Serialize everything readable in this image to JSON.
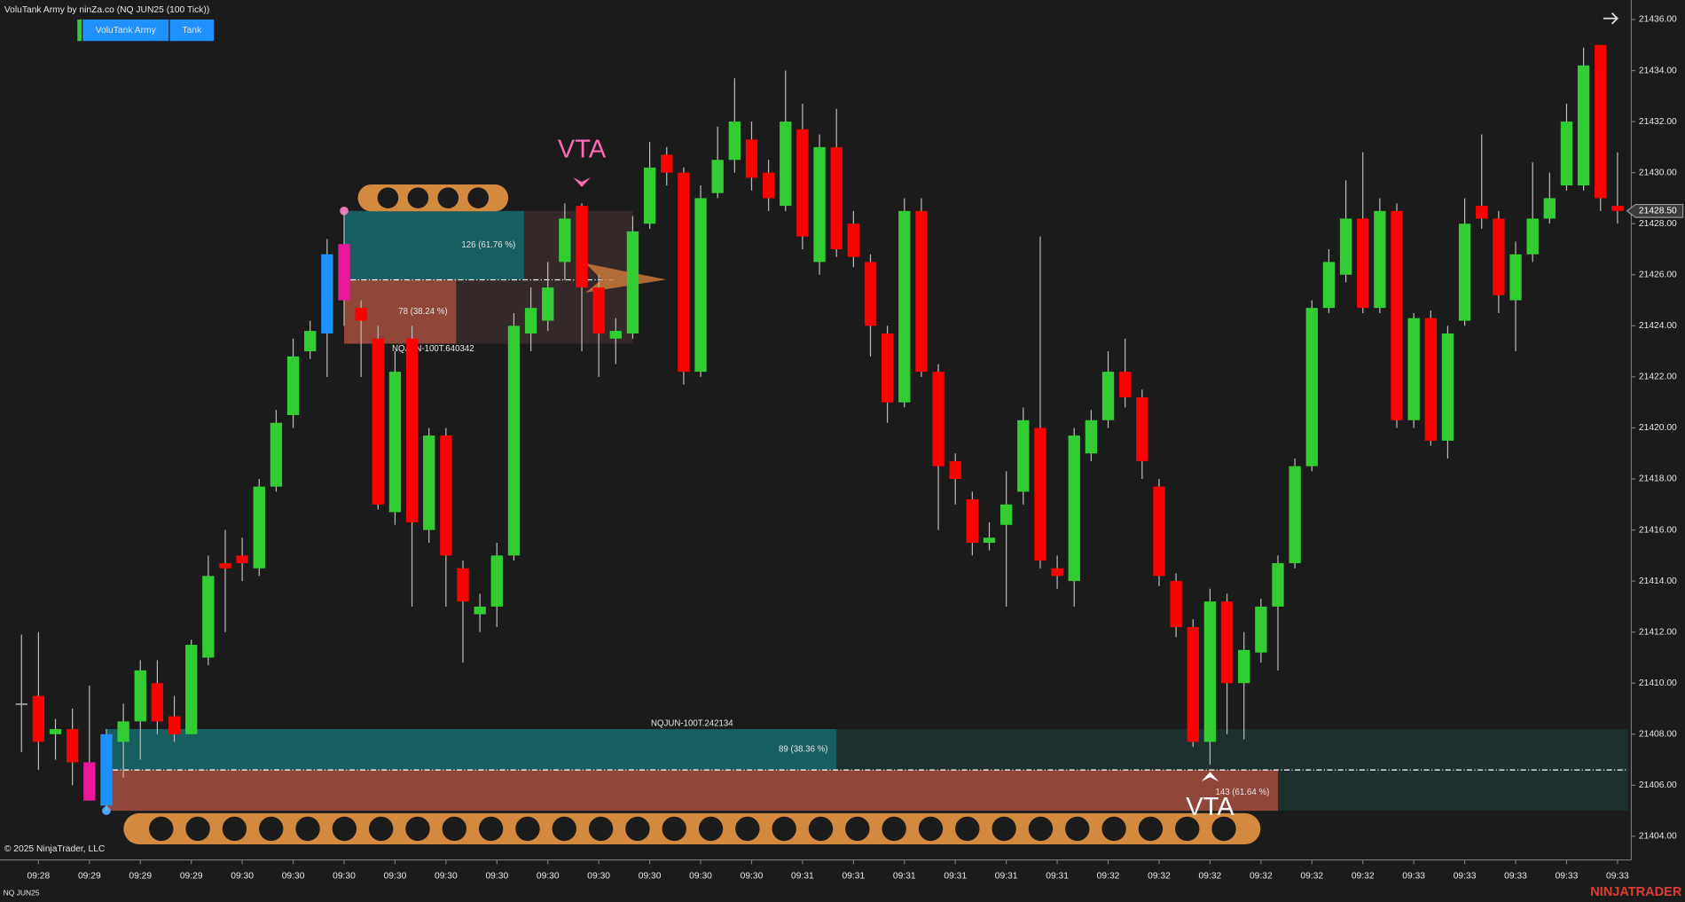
{
  "header": {
    "title": "VoluTank Army by ninZa.co (NQ JUN25 (100 Tick))",
    "buttons": [
      "VoluTank Army",
      "Tank"
    ]
  },
  "footer": {
    "copyright": "© 2025 NinjaTrader, LLC",
    "instrument": "NQ JUN25",
    "logo": "NINJATRADER"
  },
  "chart_data": {
    "type": "candlestick",
    "categories": [
      null,
      "09:28",
      null,
      null,
      "09:29",
      null,
      null,
      "09:29",
      null,
      null,
      "09:29",
      null,
      null,
      "09:30",
      null,
      null,
      "09:30",
      null,
      null,
      "09:30",
      null,
      null,
      "09:30",
      null,
      null,
      "09:30",
      null,
      null,
      "09:30",
      null,
      null,
      "09:30",
      null,
      null,
      "09:30",
      null,
      null,
      "09:30",
      null,
      null,
      "09:30",
      null,
      null,
      "09:30",
      null,
      null,
      "09:31",
      null,
      null,
      "09:31",
      null,
      null,
      "09:31",
      null,
      null,
      "09:31",
      null,
      null,
      "09:31",
      null,
      null,
      "09:31",
      null,
      null,
      "09:32",
      null,
      null,
      "09:32",
      null,
      null,
      "09:32",
      null,
      null,
      "09:32",
      null,
      null,
      "09:32",
      null,
      null,
      "09:32",
      null,
      null,
      "09:33",
      null,
      null,
      "09:33",
      null,
      null,
      "09:33",
      null,
      null,
      "09:33",
      null,
      null,
      "09:33"
    ],
    "open": [
      21409.2,
      21409.5,
      21408.0,
      21408.2,
      21406.9,
      21405.2,
      21407.7,
      21408.5,
      21410.0,
      21408.7,
      21408.0,
      21411.0,
      21414.7,
      21415.0,
      21414.5,
      21417.7,
      21420.5,
      21423.0,
      21423.7,
      21427.2,
      21424.7,
      21423.5,
      21416.7,
      21423.5,
      21416.0,
      21419.7,
      21414.5,
      21412.7,
      21413.0,
      21415.0,
      21423.7,
      21424.2,
      21426.5,
      21428.7,
      21425.5,
      21423.5,
      21423.7,
      21428.0,
      21430.7,
      21430.0,
      21422.2,
      21429.2,
      21430.5,
      21431.3,
      21430.0,
      21428.7,
      21431.7,
      21426.5,
      21431.0,
      21428.0,
      21426.5,
      21423.7,
      21421.0,
      21428.5,
      21422.2,
      21418.7,
      21417.2,
      21415.5,
      21416.2,
      21417.5,
      21420.0,
      21414.5,
      21414.0,
      21419.0,
      21420.3,
      21422.2,
      21421.2,
      21417.7,
      21414.0,
      21412.2,
      21407.7,
      21413.2,
      21410.0,
      21411.2,
      21413.0,
      21414.7,
      21418.5,
      21424.7,
      21426.0,
      21428.2,
      21424.7,
      21428.5,
      21420.3,
      21424.3,
      21419.5,
      21424.2,
      21428.7,
      21428.2,
      21425.0,
      21426.8,
      21428.2,
      21429.5,
      21429.5,
      21435.0,
      21428.7
    ],
    "high": [
      21411.9,
      21412.0,
      21408.6,
      21409.0,
      21409.9,
      21408.2,
      21409.2,
      21410.9,
      21410.9,
      21409.5,
      21411.7,
      21415.0,
      21416.0,
      21415.7,
      21418.0,
      21420.7,
      21423.5,
      21424.2,
      21427.4,
      21428.5,
      21425.0,
      21424.0,
      21423.0,
      21424.0,
      21420.0,
      21420.0,
      21414.8,
      21413.5,
      21415.5,
      21424.5,
      21425.5,
      21426.5,
      21428.8,
      21428.8,
      21426.0,
      21424.3,
      21428.3,
      21431.2,
      21431.0,
      21430.2,
      21429.5,
      21431.8,
      21433.7,
      21432.0,
      21430.5,
      21434.0,
      21432.7,
      21431.5,
      21432.5,
      21428.5,
      21426.8,
      21424.0,
      21429.0,
      21429.0,
      21422.5,
      21419.0,
      21417.5,
      21416.3,
      21418.3,
      21420.8,
      21427.5,
      21415.0,
      21420.0,
      21420.7,
      21423.0,
      21423.5,
      21421.5,
      21418.0,
      21414.3,
      21412.5,
      21413.7,
      21413.5,
      21412.0,
      21413.3,
      21415.0,
      21418.8,
      21425.0,
      21427.0,
      21429.7,
      21430.8,
      21429.0,
      21428.8,
      21424.5,
      21424.6,
      21424.0,
      21429.0,
      21431.5,
      21428.5,
      21427.3,
      21430.4,
      21430.0,
      21432.7,
      21434.9,
      21435.0,
      21430.8
    ],
    "low": [
      21407.3,
      21406.6,
      21407.0,
      21406.0,
      21405.4,
      21405.0,
      21406.3,
      21407.0,
      21408.0,
      21407.7,
      21408.0,
      21410.7,
      21412.0,
      21414.0,
      21414.2,
      21417.5,
      21420.0,
      21422.7,
      21422.0,
      21424.0,
      21422.0,
      21416.8,
      21416.2,
      21413.0,
      21415.5,
      21413.0,
      21410.8,
      21412.0,
      21412.2,
      21414.8,
      21423.0,
      21423.8,
      21425.8,
      21423.0,
      21422.0,
      21422.5,
      21423.5,
      21427.8,
      21429.5,
      21421.7,
      21422.0,
      21429.0,
      21430.0,
      21429.3,
      21428.5,
      21428.5,
      21427.0,
      21426.0,
      21426.7,
      21426.3,
      21422.8,
      21420.2,
      21420.8,
      21422.0,
      21416.0,
      21417.0,
      21415.0,
      21415.2,
      21413.0,
      21417.0,
      21414.5,
      21413.7,
      21413.0,
      21418.7,
      21420.0,
      21420.8,
      21418.0,
      21413.8,
      21411.8,
      21407.5,
      21406.8,
      21408.0,
      21407.8,
      21410.8,
      21410.5,
      21414.5,
      21418.3,
      21424.5,
      21425.7,
      21424.5,
      21424.5,
      21420.0,
      21420.0,
      21419.3,
      21418.8,
      21424.0,
      21427.8,
      21424.5,
      21423.0,
      21426.5,
      21428.0,
      21429.3,
      21429.3,
      21428.5,
      21428.0
    ],
    "close": [
      21409.2,
      21407.7,
      21408.2,
      21406.9,
      21405.4,
      21408.0,
      21408.5,
      21410.5,
      21408.5,
      21408.0,
      21411.5,
      21414.2,
      21414.5,
      21414.7,
      21417.7,
      21420.2,
      21422.8,
      21423.8,
      21426.8,
      21425.0,
      21424.2,
      21417.0,
      21422.2,
      21416.3,
      21419.7,
      21415.0,
      21413.2,
      21413.0,
      21415.0,
      21424.0,
      21424.7,
      21425.5,
      21428.2,
      21425.5,
      21423.7,
      21423.8,
      21427.7,
      21430.2,
      21430.0,
      21422.2,
      21429.0,
      21430.5,
      21432.0,
      21429.8,
      21429.0,
      21432.0,
      21427.5,
      21431.0,
      21427.0,
      21426.7,
      21424.0,
      21421.0,
      21428.5,
      21422.2,
      21418.5,
      21418.0,
      21415.5,
      21415.7,
      21417.0,
      21420.3,
      21414.8,
      21414.2,
      21419.7,
      21420.3,
      21422.2,
      21421.2,
      21418.7,
      21414.2,
      21412.2,
      21407.7,
      21413.2,
      21410.0,
      21411.3,
      21413.0,
      21414.7,
      21418.5,
      21424.7,
      21426.5,
      21428.2,
      21424.7,
      21428.5,
      21420.3,
      21424.3,
      21419.5,
      21423.7,
      21428.0,
      21428.2,
      21425.2,
      21426.8,
      21428.2,
      21429.0,
      21432.0,
      21434.2,
      21429.0,
      21428.5
    ],
    "up_color": "#32cd32",
    "down_color": "#ff0000",
    "doji_color": "#bbbbbb",
    "highlight_colors": {
      "4": "#e8199a",
      "5": "#1e90ff",
      "18": "#1e90ff",
      "19": "#e8199a"
    },
    "ylim": [
      21403.0,
      21437.0
    ],
    "yticks": [
      {
        "value": 21404,
        "label": "21404.00"
      },
      {
        "value": 21406,
        "label": "21406.00"
      },
      {
        "value": 21408,
        "label": "21408.00"
      },
      {
        "value": 21410,
        "label": "21410.00"
      },
      {
        "value": 21412,
        "label": "21412.00"
      },
      {
        "value": 21414,
        "label": "21414.00"
      },
      {
        "value": 21416,
        "label": "21416.00"
      },
      {
        "value": 21418,
        "label": "21418.00"
      },
      {
        "value": 21420,
        "label": "21420.00"
      },
      {
        "value": 21422,
        "label": "21422.00"
      },
      {
        "value": 21424,
        "label": "21424.00"
      },
      {
        "value": 21426,
        "label": "21426.00"
      },
      {
        "value": 21428,
        "label": "21428.00"
      },
      {
        "value": 21430,
        "label": "21430.00"
      },
      {
        "value": 21432,
        "label": "21432.00"
      },
      {
        "value": 21434,
        "label": "21434.00"
      },
      {
        "value": 21436,
        "label": "21436.00"
      }
    ],
    "last_price": {
      "value": 21428.5,
      "label": "21428.50"
    },
    "grid": false,
    "zones": [
      {
        "label": "NQJUN-100T.640342",
        "top": 21428.5,
        "mid": 21425.8,
        "bottom": 21423.3,
        "upper_text": "126 (61.76 %)",
        "lower_text": "78 (38.24 %)"
      },
      {
        "label": "NQJUN-100T.242134",
        "top": 21408.2,
        "mid": 21406.6,
        "bottom": 21405.0,
        "upper_text": "89 (38.36 %)",
        "lower_text": "143 (61.64 %)"
      }
    ],
    "annotations": [
      {
        "text": "VTA",
        "color": "#ff69b4"
      },
      {
        "text": "VTA",
        "color": "#ffffff"
      }
    ]
  }
}
